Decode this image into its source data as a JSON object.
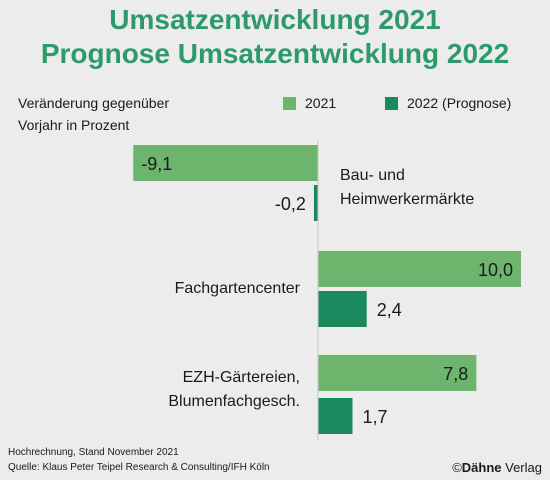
{
  "chart_data": {
    "type": "bar",
    "orientation": "horizontal",
    "title": "Umsatzentwicklung 2021",
    "subtitle": "Prognose Umsatzentwicklung 2022",
    "ylabel_line1": "Veränderung gegenüber",
    "ylabel_line2": "Vorjahr in Prozent",
    "categories": [
      {
        "lines": [
          "Bau- und",
          "Heimwerkermärkte"
        ]
      },
      {
        "lines": [
          "Fachgartencenter"
        ]
      },
      {
        "lines": [
          "EZH-Gärtereien,",
          "Blumenfachgesch."
        ]
      }
    ],
    "series": [
      {
        "name": "2021",
        "color": "#6db56d",
        "values": [
          -9.1,
          10.0,
          7.8
        ],
        "labels": [
          "-9,1",
          "10,0",
          "7,8"
        ]
      },
      {
        "name": "2022 (Prognose)",
        "color": "#1a8a5e",
        "values": [
          -0.2,
          2.4,
          1.7
        ],
        "labels": [
          "-0,2",
          "2,4",
          "1,7"
        ]
      }
    ],
    "xlim": [
      -10.5,
      11
    ],
    "grid": false,
    "legend": "top-right"
  },
  "footnote_line1": "Hochrechnung, Stand November 2021",
  "footnote_line2": "Quelle: Klaus Peter Teipel Research & Consulting/IFH Köln",
  "publisher_symbol": "©",
  "publisher_bold": "Dähne",
  "publisher_rest": " Verlag"
}
